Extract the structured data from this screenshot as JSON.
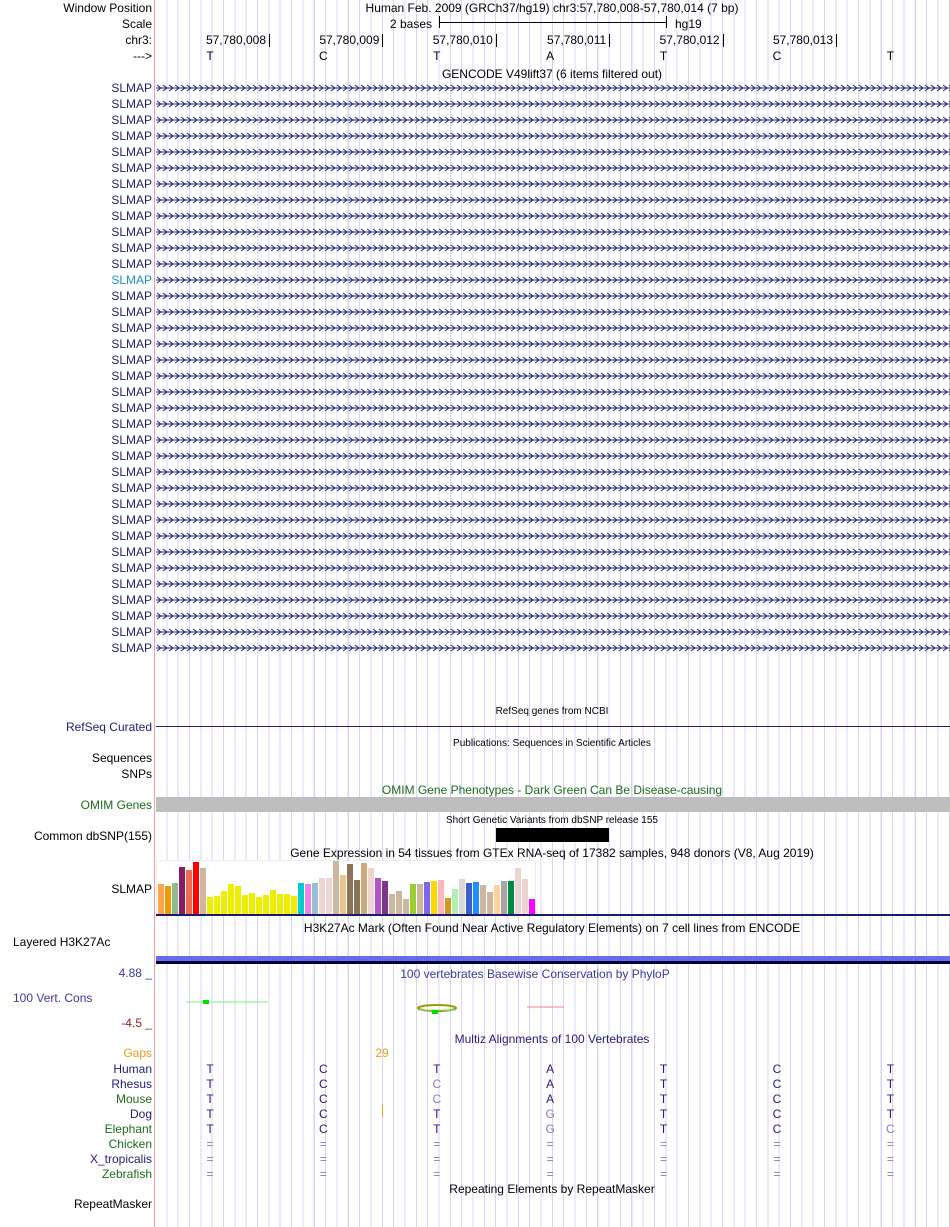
{
  "labels": {
    "window_position": "Window Position",
    "scale": "Scale",
    "chrom": "chr3:",
    "strand": "--->"
  },
  "header": {
    "title": "Human Feb. 2009 (GRCh37/hg19)   chr3:57,780,008-57,780,014 (7 bp)",
    "scale_text": "2 bases",
    "assembly": "hg19"
  },
  "positions": [
    "57,780,008",
    "57,780,009",
    "57,780,010",
    "57,780,011",
    "57,780,012",
    "57,780,013"
  ],
  "reference_bases": [
    "T",
    "C",
    "T",
    "A",
    "T",
    "C",
    "T"
  ],
  "gencode": {
    "title": "GENCODE V49lift37 (6 items filtered out)",
    "gene": "SLMAP",
    "row_count": 36,
    "highlight_row": 12
  },
  "refseq": {
    "title": "RefSeq genes from NCBI",
    "label": "RefSeq Curated"
  },
  "publications": {
    "title": "Publications: Sequences in Scientific Articles",
    "label": "Sequences"
  },
  "snps_label": "SNPs",
  "omim": {
    "title": "OMIM Gene Phenotypes - Dark Green Can Be Disease-causing",
    "label": "OMIM Genes"
  },
  "dbsnp": {
    "title": "Short Genetic Variants from dbSNP release 155",
    "label": "Common dbSNP(155)"
  },
  "gtex": {
    "title": "Gene Expression in 54 tissues from GTEx RNA-seq of 17382 samples, 948 donors (V8, Aug 2019)",
    "label": "SLMAP",
    "values": [
      31,
      29,
      32,
      48,
      45,
      53,
      47,
      18,
      19,
      24,
      31,
      29,
      20,
      22,
      18,
      20,
      25,
      21,
      21,
      19,
      32,
      31,
      32,
      37,
      37,
      54,
      40,
      51,
      35,
      52,
      47,
      37,
      34,
      21,
      24,
      16,
      31,
      31,
      33,
      34,
      35,
      17,
      26,
      36,
      32,
      33,
      30,
      23,
      30,
      34,
      34,
      47,
      36,
      16
    ],
    "colors": [
      "#ffa54f",
      "#ee9a00",
      "#8fbc8f",
      "#8b1c62",
      "#ee6a50",
      "#ff0000",
      "#cdb79e",
      "#eeee00",
      "#eeee00",
      "#eeee00",
      "#eeee00",
      "#eeee00",
      "#eeee00",
      "#eeee00",
      "#eeee00",
      "#eeee00",
      "#eeee00",
      "#eeee00",
      "#eeee00",
      "#eeee00",
      "#00cdcd",
      "#ee82ee",
      "#9ac0cd",
      "#eed5d2",
      "#eed5d2",
      "#cdb79e",
      "#eec591",
      "#8b7355",
      "#8b7355",
      "#cdaa7d",
      "#eed5d2",
      "#b452cd",
      "#7a378b",
      "#cdb79e",
      "#cdb79e",
      "#cdb79e",
      "#9acd32",
      "#cdb79e",
      "#7a67ee",
      "#ffd700",
      "#ffb6c1",
      "#cd9b1d",
      "#b4eeb4",
      "#d9d9d9",
      "#3a5fcd",
      "#1e90ff",
      "#cdb79e",
      "#cdb79e",
      "#ffd39b",
      "#a6a6a6",
      "#008b45",
      "#eed5d2",
      "#eed5d2",
      "#ff00ff"
    ]
  },
  "h3k27ac": {
    "title": "H3K27Ac Mark (Often Found Near Active Regulatory Elements) on 7 cell lines from ENCODE",
    "label": "Layered H3K27Ac"
  },
  "phylop": {
    "title": "100 vertebrates Basewise Conservation by PhyloP",
    "label": "100 Vert. Cons",
    "max": "4.88 _",
    "min": "-4.5 _"
  },
  "multiz": {
    "title": "Multiz Alignments of 100 Vertebrates",
    "gaps_label": "Gaps",
    "gap_count": "29",
    "species": [
      {
        "name": "Human",
        "color": "#20207a",
        "bases": [
          "T",
          "C",
          "T",
          "A",
          "T",
          "C",
          "T"
        ]
      },
      {
        "name": "Rhesus",
        "color": "#20207a",
        "bases": [
          "T",
          "C",
          "C",
          "A",
          "T",
          "C",
          "T"
        ]
      },
      {
        "name": "Mouse",
        "color": "#1c6b1c",
        "bases": [
          "T",
          "C",
          "C",
          "A",
          "T",
          "C",
          "T"
        ]
      },
      {
        "name": "Dog",
        "color": "#20207a",
        "bases": [
          "T",
          "C",
          "T",
          "G",
          "T",
          "C",
          "T"
        ]
      },
      {
        "name": "Elephant",
        "color": "#1c6b1c",
        "bases": [
          "T",
          "C",
          "T",
          "G",
          "T",
          "C",
          "C"
        ]
      },
      {
        "name": "Chicken",
        "color": "#1c6b1c",
        "bases": [
          "=",
          "=",
          "=",
          "=",
          "=",
          "=",
          "="
        ]
      },
      {
        "name": "X_tropicalis",
        "color": "#20207a",
        "bases": [
          "=",
          "=",
          "=",
          "=",
          "=",
          "=",
          "="
        ]
      },
      {
        "name": "Zebrafish",
        "color": "#1c6b1c",
        "bases": [
          "=",
          "=",
          "=",
          "=",
          "=",
          "=",
          "="
        ]
      }
    ]
  },
  "repeatmasker": {
    "title": "Repeating Elements by RepeatMasker",
    "label": "RepeatMasker"
  }
}
